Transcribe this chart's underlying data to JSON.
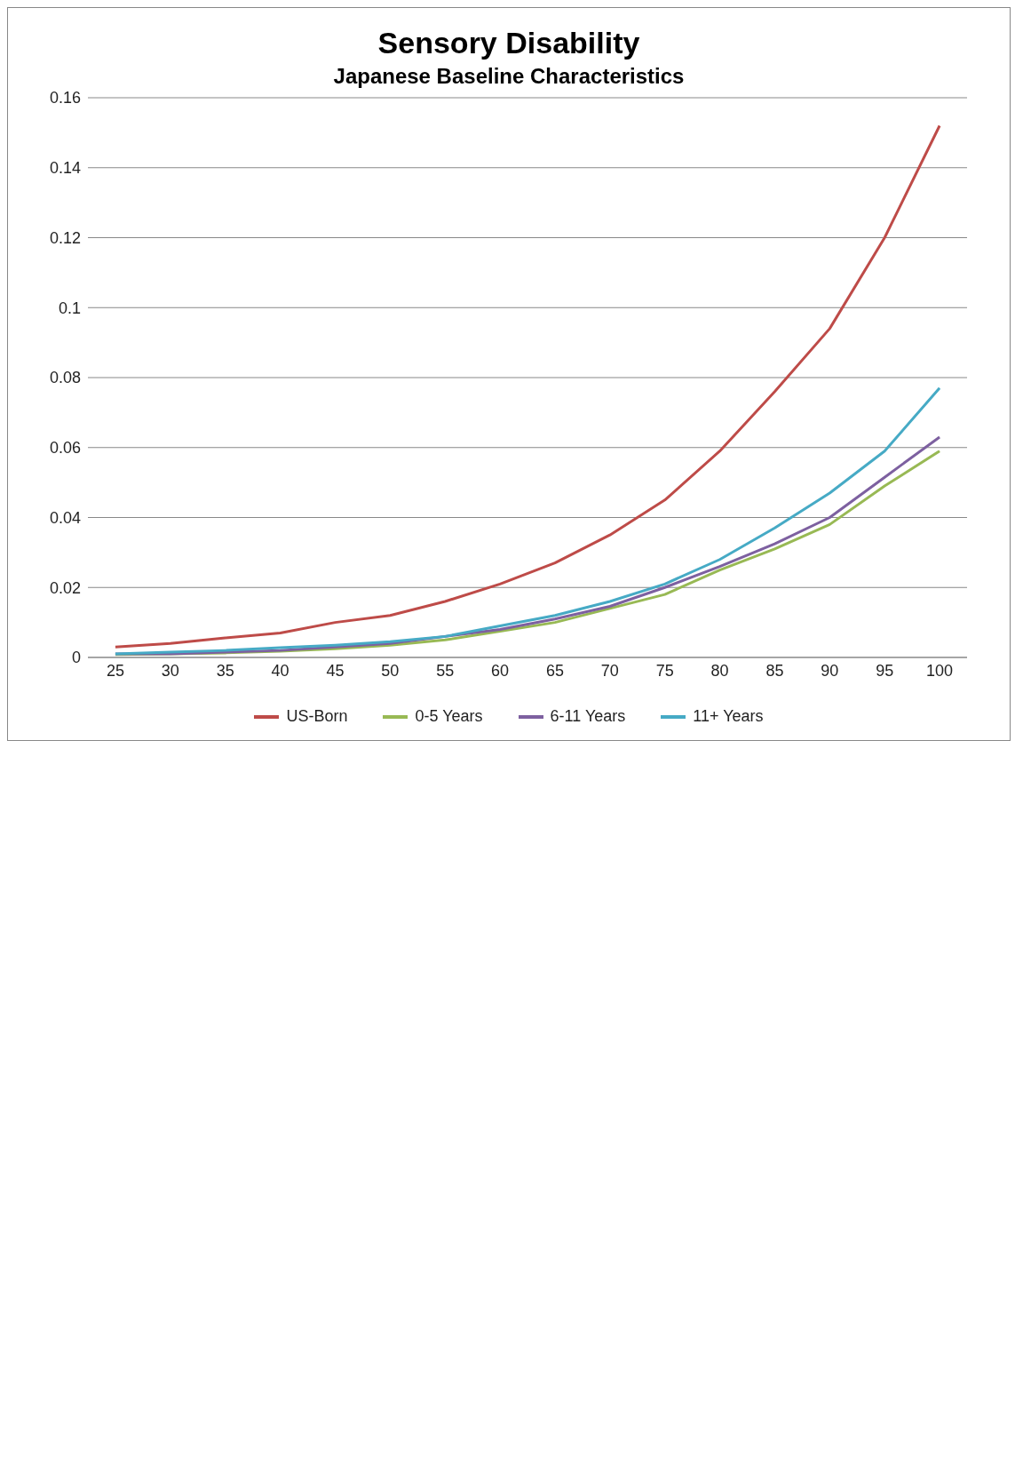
{
  "chart_data": {
    "type": "line",
    "title": "Sensory Disability",
    "subtitle": "Japanese Baseline Characteristics",
    "x": [
      25,
      30,
      35,
      40,
      45,
      50,
      55,
      60,
      65,
      70,
      75,
      80,
      85,
      90,
      95,
      100
    ],
    "series": [
      {
        "name": "US-Born",
        "color": "#be4b48",
        "values": [
          0.003,
          0.004,
          0.0056,
          0.007,
          0.01,
          0.012,
          0.016,
          0.021,
          0.027,
          0.035,
          0.045,
          0.059,
          0.076,
          0.094,
          0.12,
          0.152
        ]
      },
      {
        "name": "0-5 Years",
        "color": "#98b954",
        "values": [
          0.0008,
          0.001,
          0.0013,
          0.0018,
          0.0025,
          0.0035,
          0.005,
          0.0075,
          0.01,
          0.014,
          0.018,
          0.025,
          0.031,
          0.038,
          0.049,
          0.059
        ]
      },
      {
        "name": "6-11 Years",
        "color": "#7d60a0",
        "values": [
          0.001,
          0.001,
          0.0015,
          0.002,
          0.003,
          0.004,
          0.006,
          0.008,
          0.011,
          0.0146,
          0.02,
          0.026,
          0.0325,
          0.04,
          0.0515,
          0.063
        ]
      },
      {
        "name": "11+ Years",
        "color": "#46aac5",
        "values": [
          0.001,
          0.0015,
          0.002,
          0.0028,
          0.0035,
          0.0045,
          0.006,
          0.009,
          0.012,
          0.016,
          0.021,
          0.028,
          0.037,
          0.047,
          0.059,
          0.077
        ]
      }
    ],
    "xlim": [
      22.5,
      102.5
    ],
    "xticks": [
      25,
      30,
      35,
      40,
      45,
      50,
      55,
      60,
      65,
      70,
      75,
      80,
      85,
      90,
      95,
      100
    ],
    "ylim": [
      0,
      0.16
    ],
    "yticks": [
      0,
      0.02,
      0.04,
      0.06,
      0.08,
      0.1,
      0.12,
      0.14,
      0.16
    ],
    "grid": "y",
    "legend": "bottom",
    "marker": "none",
    "line_style": "solid"
  }
}
